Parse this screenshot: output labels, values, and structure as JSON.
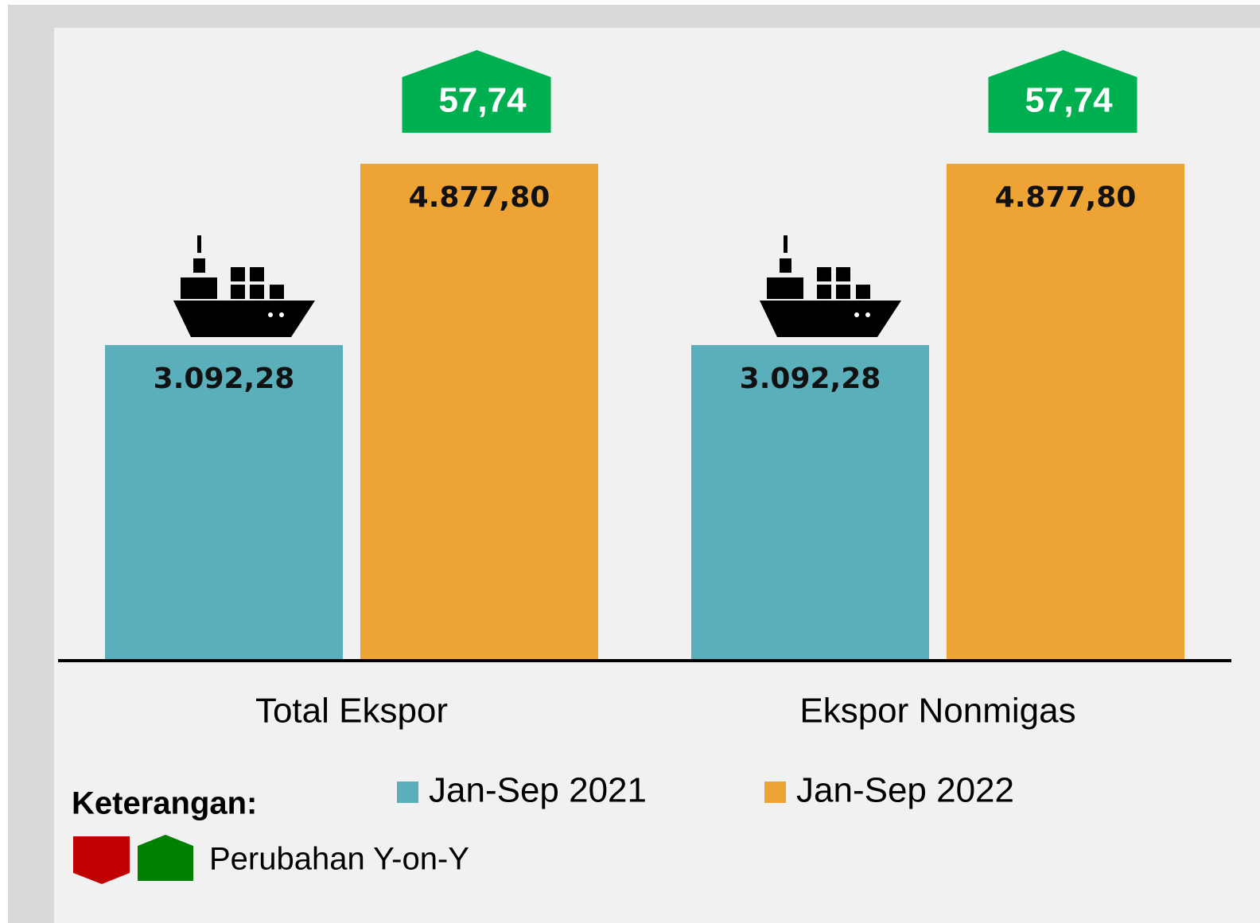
{
  "chart_data": {
    "type": "bar",
    "categories": [
      "Total Ekspor",
      "Ekspor Nonmigas"
    ],
    "series": [
      {
        "name": "Jan-Sep 2021",
        "color": "#5aafbb",
        "values": [
          3092.28,
          3092.28
        ],
        "value_labels": [
          "3.092,28",
          "3.092,28"
        ]
      },
      {
        "name": "Jan-Sep 2022",
        "color": "#eea434",
        "values": [
          4877.8,
          4877.8
        ],
        "value_labels": [
          "4.877,80",
          "4.877,80"
        ]
      }
    ],
    "changes": {
      "color": "#00b050",
      "values": [
        57.74,
        57.74
      ],
      "value_labels": [
        "57,74",
        "57,74"
      ]
    },
    "legend_title": "Keterangan:",
    "change_legend": "Perubahan Y-on-Y"
  }
}
